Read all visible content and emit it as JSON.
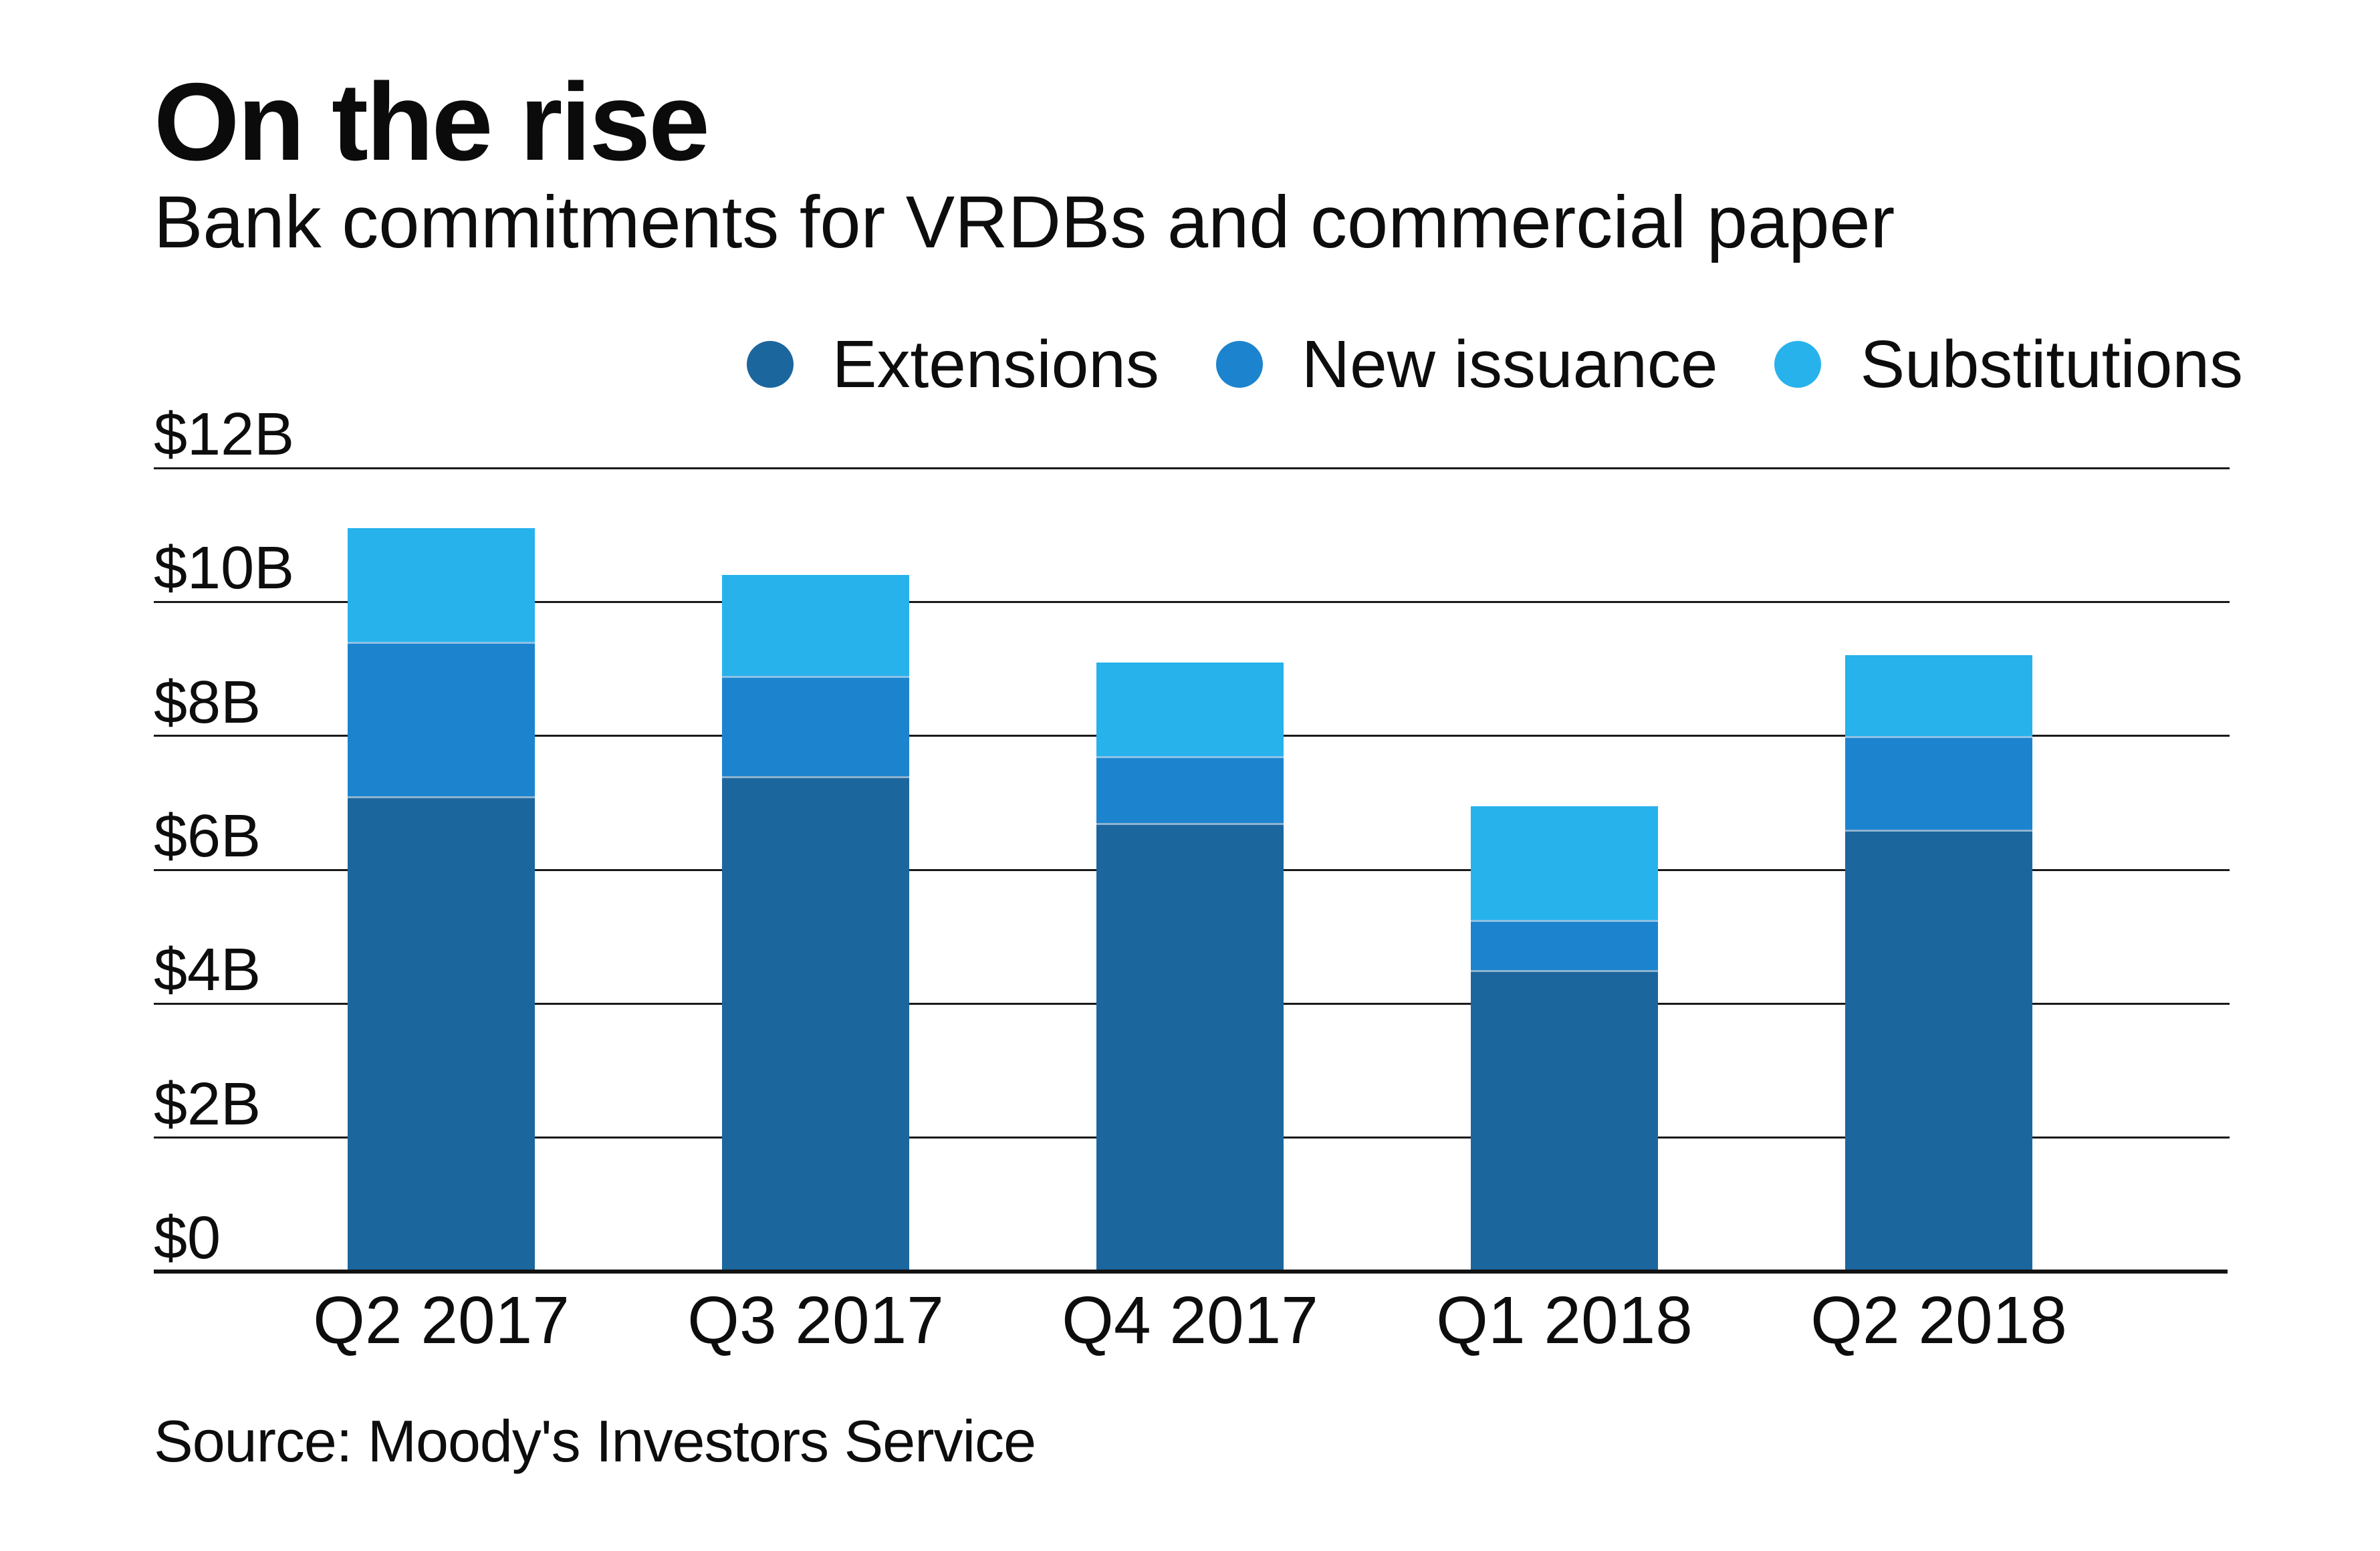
{
  "header": {
    "title": "On the rise",
    "subtitle": "Bank commitments for VRDBs and commercial paper"
  },
  "source_line": "Source: Moody's Investors Service",
  "colors": {
    "extensions": "#1c669e",
    "new_issuance": "#1c84ce",
    "substitutions": "#27b2ec",
    "gridline": "#1a1a1a",
    "axis": "#121212",
    "text": "#0d0d0d",
    "background": "#ffffff"
  },
  "legend": {
    "position": "top-right",
    "items": [
      {
        "label": "Extensions",
        "color": "#1c669e"
      },
      {
        "label": "New issuance",
        "color": "#1c84ce"
      },
      {
        "label": "Substitutions",
        "color": "#27b2ec"
      }
    ]
  },
  "chart_data": {
    "type": "bar",
    "stacked": true,
    "title": "On the rise",
    "subtitle": "Bank commitments for VRDBs and commercial paper",
    "unit": "billions USD",
    "categories": [
      "Q2 2017",
      "Q3 2017",
      "Q4 2017",
      "Q1 2018",
      "Q2 2018"
    ],
    "series": [
      {
        "name": "Extensions",
        "color": "#1c669e",
        "values": [
          7.1,
          7.4,
          6.7,
          4.5,
          6.6
        ]
      },
      {
        "name": "New issuance",
        "color": "#1c84ce",
        "values": [
          2.3,
          1.5,
          1.0,
          0.75,
          1.4
        ]
      },
      {
        "name": "Substitutions",
        "color": "#27b2ec",
        "values": [
          1.7,
          1.5,
          1.4,
          1.7,
          1.2
        ]
      }
    ],
    "totals": [
      11.1,
      10.4,
      9.1,
      6.95,
      9.2
    ],
    "ylim": [
      0,
      12
    ],
    "ytick_step": 2,
    "yticks": [
      "$0",
      "$2B",
      "$4B",
      "$6B",
      "$8B",
      "$10B",
      "$12B"
    ],
    "grid": true,
    "legend_position": "top-right",
    "source": "Source: Moody's Investors Service"
  }
}
